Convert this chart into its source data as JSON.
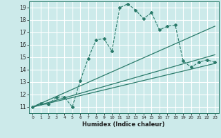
{
  "xlabel": "Humidex (Indice chaleur)",
  "bg_color": "#cceaea",
  "grid_color": "#ffffff",
  "line_color": "#2a7a6a",
  "xlim": [
    -0.5,
    23.5
  ],
  "ylim": [
    10.5,
    19.5
  ],
  "xticks": [
    0,
    1,
    2,
    3,
    4,
    5,
    6,
    7,
    8,
    9,
    10,
    11,
    12,
    13,
    14,
    15,
    16,
    17,
    18,
    19,
    20,
    21,
    22,
    23
  ],
  "yticks": [
    11,
    12,
    13,
    14,
    15,
    16,
    17,
    18,
    19
  ],
  "series1_x": [
    0,
    1,
    2,
    3,
    4,
    5,
    6,
    7,
    8,
    9,
    10,
    11,
    12,
    13,
    14,
    15,
    16,
    17,
    18,
    19,
    20,
    21,
    22,
    23
  ],
  "series1_y": [
    11.0,
    11.3,
    11.2,
    11.8,
    11.8,
    11.0,
    13.1,
    14.9,
    16.4,
    16.5,
    15.5,
    19.0,
    19.3,
    18.8,
    18.1,
    18.6,
    17.2,
    17.5,
    17.6,
    14.7,
    14.2,
    14.6,
    14.8,
    14.6
  ],
  "series2_x": [
    0,
    23
  ],
  "series2_y": [
    11.0,
    17.5
  ],
  "series3_x": [
    0,
    23
  ],
  "series3_y": [
    11.0,
    14.5
  ],
  "series4_x": [
    0,
    23
  ],
  "series4_y": [
    11.0,
    15.2
  ]
}
